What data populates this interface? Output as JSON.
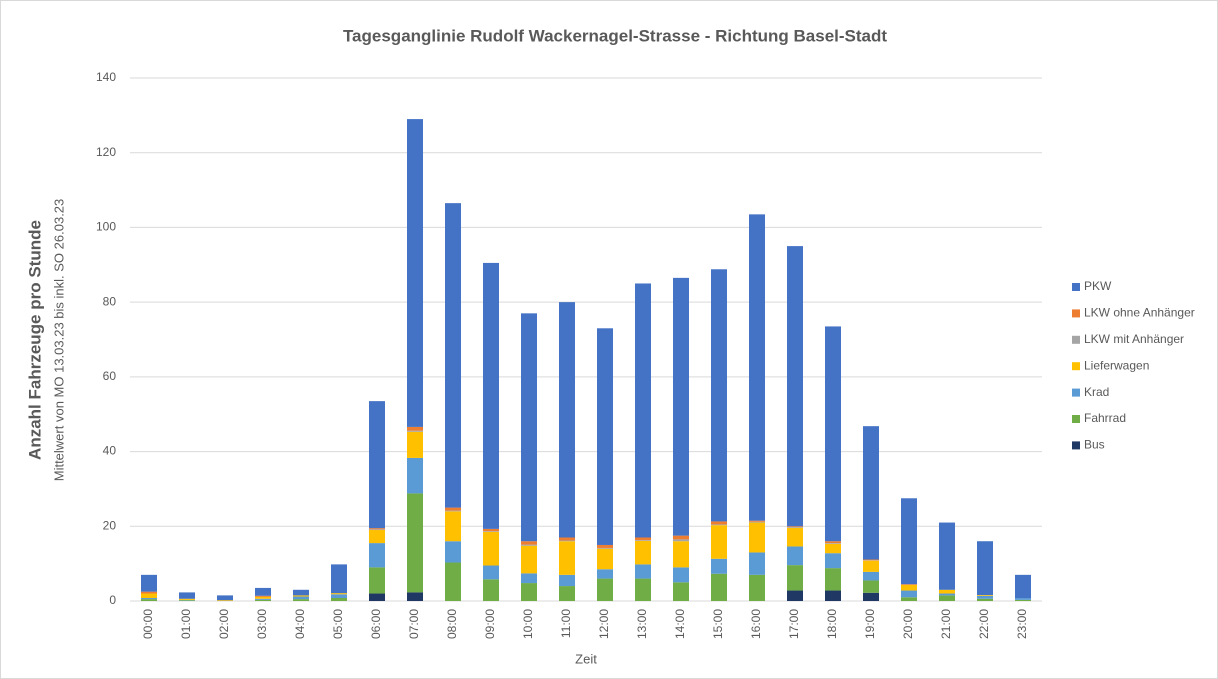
{
  "chart_data": {
    "type": "stacked_bar",
    "title": "Tagesganglinie Rudolf Wackernagel-Strasse - Richtung Basel-Stadt",
    "ylabel": "Anzahl Fahrzeuge pro Stunde",
    "ylabel_sub": "Mittelwert von MO 13.03.23 bis inkl. SO 26.03.23",
    "xlabel": "Zeit",
    "categories": [
      "00:00",
      "01:00",
      "02:00",
      "03:00",
      "04:00",
      "05:00",
      "06:00",
      "07:00",
      "08:00",
      "09:00",
      "10:00",
      "11:00",
      "12:00",
      "13:00",
      "14:00",
      "15:00",
      "16:00",
      "17:00",
      "18:00",
      "19:00",
      "20:00",
      "21:00",
      "22:00",
      "23:00"
    ],
    "series": [
      {
        "name": "Bus",
        "color": "#203864",
        "values": [
          0,
          0,
          0,
          0,
          0,
          0,
          2,
          2.3,
          0,
          0,
          0,
          0,
          0,
          0,
          0,
          0,
          0,
          2.8,
          2.8,
          2.2,
          0,
          0,
          0,
          0
        ]
      },
      {
        "name": "Fahrrad",
        "color": "#70ad47",
        "values": [
          0.5,
          0.2,
          0,
          0.3,
          0.5,
          0.8,
          7,
          26.5,
          10.3,
          5.8,
          4.8,
          4,
          6,
          6,
          5,
          7.3,
          7,
          6.8,
          6,
          3.3,
          1,
          1.5,
          0.6,
          0.3
        ]
      },
      {
        "name": "Krad",
        "color": "#5b9bd5",
        "values": [
          0.3,
          0.1,
          0,
          0.3,
          0.7,
          1,
          6.5,
          9.5,
          5.7,
          3.7,
          2.6,
          3,
          2.5,
          3.8,
          4,
          4,
          6,
          5,
          4,
          2.3,
          1.8,
          0.5,
          0.8,
          0.5
        ]
      },
      {
        "name": "Lieferwagen",
        "color": "#ffc000",
        "values": [
          1.2,
          0.3,
          0.2,
          0.5,
          0.3,
          0.3,
          3.5,
          7,
          8,
          9,
          7.4,
          9,
          5.5,
          6.3,
          7,
          9,
          8,
          5,
          2.5,
          3,
          1.5,
          1,
          0.2,
          0
        ]
      },
      {
        "name": "LKW mit Anhänger",
        "color": "#a5a5a5",
        "values": [
          0,
          0,
          0,
          0,
          0,
          0,
          0.2,
          0.3,
          0.2,
          0.2,
          0.3,
          0.2,
          0.2,
          0.2,
          0.5,
          0.2,
          0.2,
          0.2,
          0.2,
          0.1,
          0,
          0,
          0,
          0
        ]
      },
      {
        "name": "LKW ohne Anhänger",
        "color": "#ed7d31",
        "values": [
          0.5,
          0,
          0,
          0.3,
          0,
          0,
          0.3,
          1,
          0.8,
          0.6,
          0.9,
          0.8,
          0.8,
          0.7,
          1,
          0.8,
          0.3,
          0.2,
          0.5,
          0.2,
          0.2,
          0,
          0,
          0
        ]
      },
      {
        "name": "PKW",
        "color": "#4472c4",
        "values": [
          4.5,
          1.7,
          1.3,
          2.1,
          1.5,
          7.7,
          34,
          82.4,
          81.5,
          71.2,
          61,
          63,
          58,
          68,
          69,
          67.5,
          82,
          75,
          57.5,
          35.7,
          23,
          18,
          14.4,
          6.2
        ]
      }
    ],
    "ylim": [
      0,
      140
    ],
    "yticks": [
      0,
      20,
      40,
      60,
      80,
      100,
      120,
      140
    ],
    "grid": true,
    "legend": "right"
  }
}
